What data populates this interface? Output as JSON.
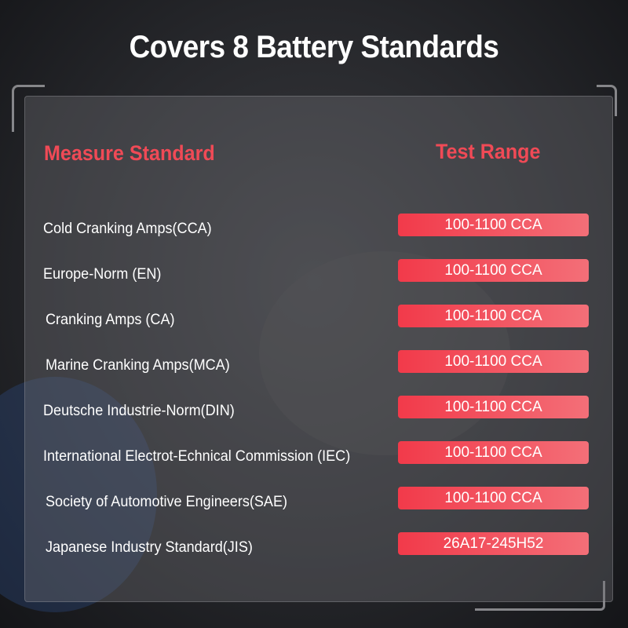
{
  "title": "Covers 8 Battery Standards",
  "headers": {
    "standard": "Measure Standard",
    "range": "Test Range"
  },
  "accent_color": "#f04a56",
  "rows": [
    {
      "standard": "Cold Cranking Amps(CCA)",
      "range": "100-1100 CCA"
    },
    {
      "standard": "Europe-Norm (EN)",
      "range": "100-1100 CCA"
    },
    {
      "standard": "Cranking Amps (CA)",
      "range": "100-1100 CCA"
    },
    {
      "standard": "Marine Cranking Amps(MCA)",
      "range": "100-1100 CCA"
    },
    {
      "standard": "Deutsche Industrie-Norm(DIN)",
      "range": "100-1100 CCA"
    },
    {
      "standard": "International Electrot-Echnical Commission (IEC)",
      "range": "100-1100 CCA"
    },
    {
      "standard": "Society of Automotive Engineers(SAE)",
      "range": "100-1100 CCA"
    },
    {
      "standard": "Japanese Industry Standard(JIS)",
      "range": "26A17-245H52"
    }
  ]
}
